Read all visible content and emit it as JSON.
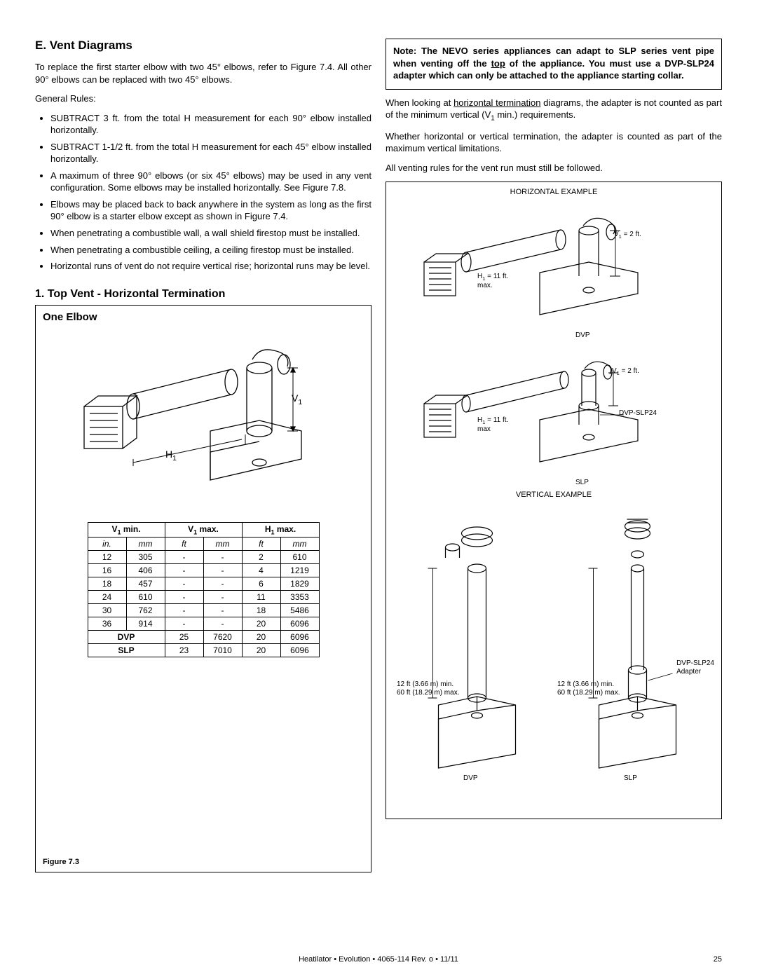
{
  "leftCol": {
    "heading": "E. Vent Diagrams",
    "intro": "To replace the first starter elbow with two 45° elbows, refer to Figure 7.4.  All other 90° elbows can be replaced with two 45° elbows.",
    "generalRulesLabel": "General Rules:",
    "rules": [
      "SUBTRACT 3 ft. from the total H measurement for each 90° elbow installed horizontally.",
      "SUBTRACT 1-1/2 ft. from the total H measurement for each 45° elbow installed horizontally.",
      "A maximum of three 90° elbows (or six 45° elbows) may be used in any vent configuration. Some elbows may be installed horizontally. See Figure 7.8.",
      "Elbows may be placed back to back anywhere in the system as long as the first 90° elbow is a starter elbow except as shown in Figure 7.4.",
      "When penetrating a combustible wall, a wall shield firestop must be installed.",
      "When penetrating a combustible ceiling, a ceiling firestop must be installed.",
      "Horizontal runs of vent do not require vertical rise; horizontal runs may be level."
    ],
    "sub1": "1.  Top Vent - Horizontal Termination",
    "oneElbow": "One Elbow",
    "figLabel": "Figure 7.3",
    "diagLabels": {
      "H1": "H",
      "V1": "V"
    },
    "table": {
      "headers": {
        "v1min": "V₁ min.",
        "v1max": "V₁ max.",
        "h1max": "H₁ max."
      },
      "units": [
        "in.",
        "mm",
        "ft",
        "mm",
        "ft",
        "mm"
      ],
      "rows": [
        [
          "12",
          "305",
          "-",
          "-",
          "2",
          "610"
        ],
        [
          "16",
          "406",
          "-",
          "-",
          "4",
          "1219"
        ],
        [
          "18",
          "457",
          "-",
          "-",
          "6",
          "1829"
        ],
        [
          "24",
          "610",
          "-",
          "-",
          "11",
          "3353"
        ],
        [
          "30",
          "762",
          "-",
          "-",
          "18",
          "5486"
        ],
        [
          "36",
          "914",
          "-",
          "-",
          "20",
          "6096"
        ]
      ],
      "groupRows": [
        {
          "label": "DVP",
          "cells": [
            "25",
            "7620",
            "20",
            "6096"
          ]
        },
        {
          "label": "SLP",
          "cells": [
            "23",
            "7010",
            "20",
            "6096"
          ]
        }
      ]
    }
  },
  "rightCol": {
    "noteParts": {
      "p1": "Note: The NEVO series appliances can adapt to SLP series vent pipe when venting off the ",
      "topWord": "top",
      "p2": " of the appliance. You must use a DVP-SLP24 adapter which can only be attached to the appliance starting collar."
    },
    "para1a": "When looking at ",
    "para1u": "horizontal termination",
    "para1b": " diagrams, the adapter is not counted as part of the minimum vertical (V",
    "para1sub": "1",
    "para1c": " min.) requirements.",
    "para2": "Whether horizontal or vertical termination, the adapter is counted as part of the maximum vertical limitations.",
    "para3": "All venting rules for the vent run must still be followed.",
    "horizExLabel": "HORIZONTAL EXAMPLE",
    "vertExLabel": "VERTICAL EXAMPLE",
    "labels": {
      "h1max": "H₁ = 11 ft. max.",
      "h1maxB": "H₁ = 11 ft. max",
      "v1eq": "V₁ = 2 ft.",
      "dvp": "DVP",
      "slp": "SLP",
      "dvpslp": "DVP-SLP24",
      "dvpslpAdapter": "DVP-SLP24 Adapter",
      "vertRange": "12 ft (3.66 m) min. 60 ft (18.29 m) max."
    }
  },
  "footer": {
    "center": "Heatilator  •  Evolution  •  4065-114 Rev. o  •  11/11",
    "page": "25"
  },
  "style": {
    "stroke": "#000000",
    "bg": "#ffffff",
    "lineWidth": 1.3
  }
}
